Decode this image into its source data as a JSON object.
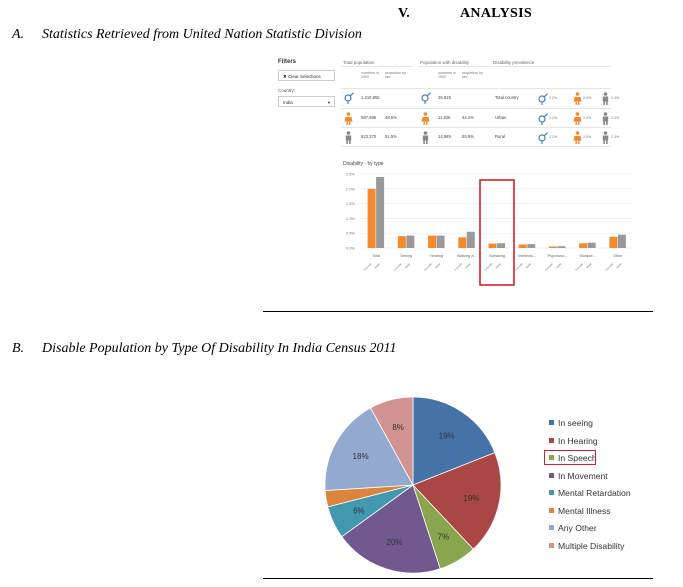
{
  "heading": {
    "number": "V.",
    "title": "ANALYSIS"
  },
  "section_a": {
    "label": "A.",
    "title": "Statistics Retrieved from United Nation Statistic Division"
  },
  "section_b": {
    "label": "B.",
    "title": "Disable Population by Type Of Disability In India Census 2011"
  },
  "dashboard": {
    "filters_title": "Filters",
    "clear_button": "✖ Clear Selections",
    "country_label": "Country:",
    "country_value": "India",
    "columns": {
      "total_population": "Total population",
      "population_with_disability": "Population with disability",
      "disability_prevalence": "Disability prevalence"
    },
    "subheads": {
      "numbers": "numbers in 1000",
      "proportion": "proportion by sex"
    },
    "total_population": [
      {
        "number": "1,210,855",
        "proportion": ""
      },
      {
        "number": "587,585",
        "proportion": "48.5%"
      },
      {
        "number": "623,270",
        "proportion": "51.5%"
      }
    ],
    "population_with_disability": [
      {
        "number": "26,815",
        "proportion": ""
      },
      {
        "number": "11,826",
        "proportion": "44.1%"
      },
      {
        "number": "14,989",
        "proportion": "55.9%"
      }
    ],
    "prevalence_rows": [
      {
        "label": "Total country",
        "all": "2.2%",
        "female": "2.0%",
        "male": "2.4%"
      },
      {
        "label": "Urban",
        "all": "2.2%",
        "female": "2.0%",
        "male": "2.3%"
      },
      {
        "label": "Rural",
        "all": "2.2%",
        "female": "2.0%",
        "male": "2.4%"
      }
    ],
    "colors": {
      "female": "#f58a2c",
      "male": "#999999",
      "male_icon": "#888888",
      "intersex_icon": "#4a7bb7",
      "highlight": "#d9202a"
    }
  },
  "chart_data": [
    {
      "type": "bar",
      "title": "Disability - by type",
      "categories": [
        "Total",
        "Seeing",
        "Hearing",
        "Walking a...",
        "Speaking",
        "Intellectu...",
        "Psychoso...",
        "Multiple...",
        "Other"
      ],
      "sub_labels": [
        "Female",
        "Male"
      ],
      "series": [
        {
          "name": "Female",
          "values": [
            2.0,
            0.4,
            0.42,
            0.36,
            0.15,
            0.12,
            0.05,
            0.16,
            0.38
          ],
          "color": "#f58a2c"
        },
        {
          "name": "Male",
          "values": [
            2.4,
            0.42,
            0.42,
            0.55,
            0.16,
            0.13,
            0.06,
            0.18,
            0.45
          ],
          "color": "#999999"
        }
      ],
      "yticks": [
        "2.5%",
        "2.0%",
        "1.5%",
        "1.0%",
        "0.5%",
        "0.0%"
      ],
      "ylim": [
        0,
        2.5
      ],
      "highlight_category": "Speaking",
      "grid": true
    },
    {
      "type": "pie",
      "labels": [
        "In seeing",
        "In Hearing",
        "In Speech",
        "In Movement",
        "Mental Retardation",
        "Mental Illness",
        "Any Other",
        "Multiple Disability"
      ],
      "values": [
        19,
        19,
        7,
        20,
        6,
        3,
        18,
        8
      ],
      "value_labels": [
        "19%",
        "19%",
        "7%",
        "20%",
        "6%",
        "3%",
        "18%",
        "8%"
      ],
      "colors": [
        "#4572a7",
        "#aa4643",
        "#89a54e",
        "#71588f",
        "#4198af",
        "#db843d",
        "#93a9cf",
        "#d19392"
      ],
      "legend_position": "right",
      "highlight_label": "In Speech"
    }
  ]
}
